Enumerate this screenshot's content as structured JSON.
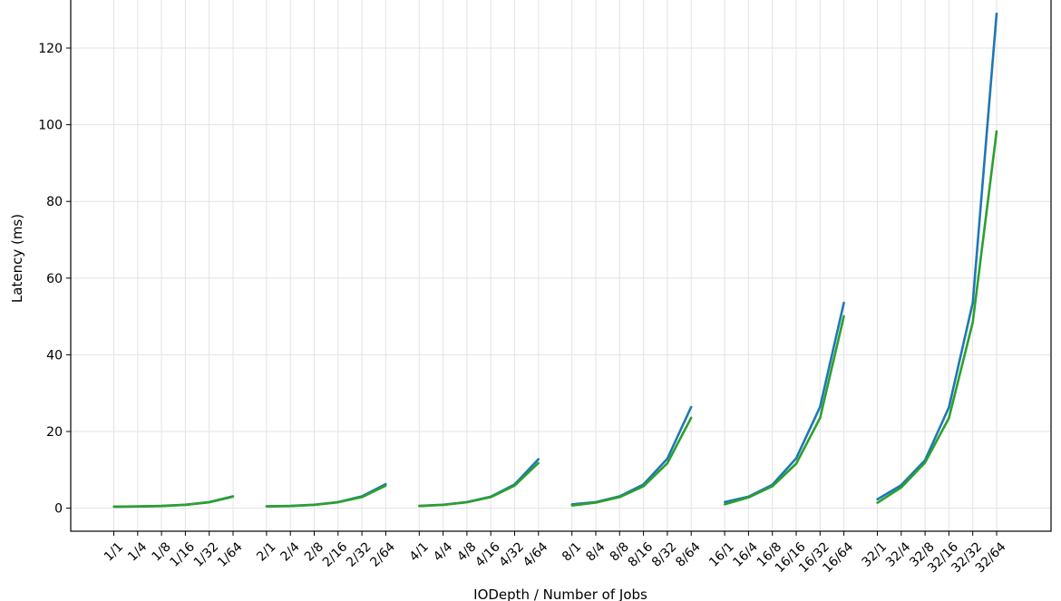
{
  "chart_data": {
    "type": "line",
    "title": "",
    "xlabel": "IODepth / Number of Jobs",
    "ylabel": "Latency (ms)",
    "ylim": [
      -6,
      133
    ],
    "yticks": [
      0,
      20,
      40,
      60,
      80,
      100,
      120
    ],
    "grid": true,
    "legend": "none",
    "categories": [
      "1/1",
      "1/4",
      "1/8",
      "1/16",
      "1/32",
      "1/64",
      "2/1",
      "2/4",
      "2/8",
      "2/16",
      "2/32",
      "2/64",
      "4/1",
      "4/4",
      "4/8",
      "4/16",
      "4/32",
      "4/64",
      "8/1",
      "8/4",
      "8/8",
      "8/16",
      "8/32",
      "8/64",
      "16/1",
      "16/4",
      "16/8",
      "16/16",
      "16/32",
      "16/64",
      "32/1",
      "32/4",
      "32/8",
      "32/16",
      "32/32",
      "32/64"
    ],
    "group_size": 6,
    "series": [
      {
        "color": "#1f77b4",
        "values": [
          0.4,
          0.45,
          0.6,
          0.9,
          1.6,
          3.1,
          0.5,
          0.6,
          0.9,
          1.6,
          3.1,
          6.3,
          0.6,
          0.9,
          1.6,
          3.0,
          6.2,
          12.8,
          1.0,
          1.6,
          3.1,
          6.2,
          12.9,
          26.4,
          1.6,
          3.0,
          6.1,
          13.0,
          26.4,
          53.6,
          2.3,
          6.0,
          12.5,
          26.3,
          53.6,
          129.0
        ]
      },
      {
        "color": "#2ca02c",
        "values": [
          0.4,
          0.45,
          0.55,
          0.85,
          1.55,
          3.0,
          0.45,
          0.55,
          0.85,
          1.55,
          2.9,
          5.9,
          0.55,
          0.85,
          1.55,
          2.9,
          5.9,
          11.8,
          0.7,
          1.45,
          2.9,
          5.7,
          11.7,
          23.6,
          1.0,
          2.8,
          5.7,
          11.6,
          23.5,
          50.1,
          1.4,
          5.4,
          11.9,
          23.5,
          48.5,
          98.3
        ]
      }
    ]
  }
}
